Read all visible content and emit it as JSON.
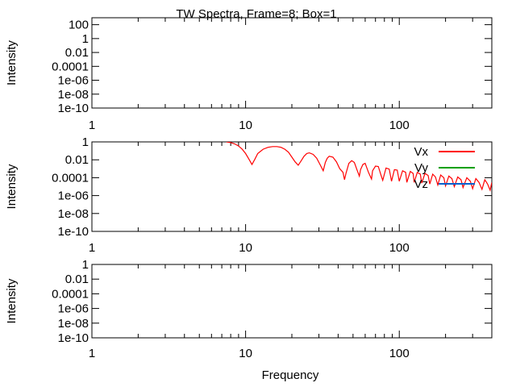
{
  "title": "TW Spectra, Frame=8; Box=1",
  "xlabel": "Frequency",
  "colors": {
    "Vx": "#ff0000",
    "Vy": "#00a000",
    "Vz": "#0060d0"
  },
  "chart_data": [
    {
      "type": "line",
      "ylabel": "Intensity",
      "xscale": "log",
      "yscale": "log",
      "xlim": [
        1,
        400
      ],
      "ylim": [
        1e-10,
        1000
      ],
      "xticks": [
        {
          "v": 1,
          "label": "1"
        },
        {
          "v": 10,
          "label": "10"
        },
        {
          "v": 100,
          "label": "100"
        }
      ],
      "yticks": [
        {
          "v": 100,
          "label": "100"
        },
        {
          "v": 1,
          "label": "1"
        },
        {
          "v": 0.01,
          "label": "0.01"
        },
        {
          "v": 0.0001,
          "label": "0.0001"
        },
        {
          "v": 1e-06,
          "label": "1e-06"
        },
        {
          "v": 1e-08,
          "label": "1e-08"
        },
        {
          "v": 1e-10,
          "label": "1e-10"
        }
      ],
      "series": []
    },
    {
      "type": "line",
      "ylabel": "Intensity",
      "xscale": "log",
      "yscale": "log",
      "xlim": [
        1,
        400
      ],
      "ylim": [
        1e-10,
        1
      ],
      "legend": "top-right",
      "xticks": [
        {
          "v": 1,
          "label": "1"
        },
        {
          "v": 10,
          "label": "10"
        },
        {
          "v": 100,
          "label": "100"
        }
      ],
      "yticks": [
        {
          "v": 1,
          "label": "1"
        },
        {
          "v": 0.01,
          "label": "0.01"
        },
        {
          "v": 0.0001,
          "label": "0.0001"
        },
        {
          "v": 1e-06,
          "label": "1e-06"
        },
        {
          "v": 1e-08,
          "label": "1e-08"
        },
        {
          "v": 1e-10,
          "label": "1e-10"
        }
      ],
      "series": [
        {
          "name": "Vx",
          "color": "#ff0000",
          "x": [
            7.5,
            8.0,
            8.5,
            9.0,
            9.5,
            10.0,
            10.5,
            11.0,
            11.5,
            12.0,
            13.0,
            14.0,
            15.0,
            16.0,
            17.0,
            18.0,
            19.0,
            20.0,
            21.0,
            22.0,
            23.0,
            24.0,
            25.0,
            26.0,
            27.5,
            29.0,
            30.5,
            32.0,
            33.0,
            34.0,
            35.0,
            37.0,
            39.0,
            41.0,
            43.0,
            44.0,
            45.0,
            47.0,
            49.0,
            51.0,
            53.0,
            55.0,
            56.0,
            58.0,
            60.0,
            63.0,
            66.0,
            67.0,
            70.0,
            73.0,
            76.0,
            78.0,
            82.0,
            86.0,
            89.0,
            93.0,
            97.0,
            100.0,
            105.0,
            110.0,
            112.0,
            118.0,
            123.0,
            125.0,
            131.0,
            137.0,
            140.0,
            147.0,
            154.0,
            158.0,
            165.0,
            172.0,
            178.0,
            186.0,
            195.0,
            200.0,
            210.0,
            220.0,
            228.0,
            240.0,
            252.0,
            260.0,
            275.0,
            290.0,
            300.0,
            315.0,
            330.0,
            345.0,
            360.0,
            375.0,
            390.0,
            400.0
          ],
          "y": [
            1.0,
            0.85,
            0.6,
            0.35,
            0.15,
            0.05,
            0.012,
            0.003,
            0.012,
            0.05,
            0.15,
            0.25,
            0.3,
            0.3,
            0.25,
            0.15,
            0.07,
            0.02,
            0.006,
            0.0025,
            0.008,
            0.025,
            0.05,
            0.06,
            0.04,
            0.015,
            0.003,
            0.0006,
            0.005,
            0.015,
            0.025,
            0.02,
            0.006,
            0.001,
            0.0004,
            6e-05,
            0.0003,
            0.004,
            0.008,
            0.005,
            0.0008,
            0.00015,
            0.0008,
            0.003,
            0.004,
            0.0004,
            7e-05,
            0.0006,
            0.002,
            0.0018,
            0.0002,
            5e-05,
            0.0012,
            0.0009,
            4e-05,
            0.0008,
            0.0007,
            4e-05,
            0.0006,
            0.0004,
            3e-05,
            0.0005,
            0.0003,
            3e-05,
            0.0004,
            0.00025,
            2.5e-05,
            0.0003,
            0.00018,
            2e-05,
            0.00025,
            0.00012,
            1.5e-05,
            0.0002,
            0.0001,
            1.2e-05,
            0.00015,
            8e-05,
            1e-05,
            0.00012,
            6e-05,
            8e-06,
            0.0001,
            4e-05,
            6e-06,
            8e-05,
            3e-05,
            5e-06,
            6e-05,
            2e-05,
            4e-06,
            3e-05
          ]
        },
        {
          "name": "Vy",
          "color": "#00a000",
          "x": [],
          "y": []
        },
        {
          "name": "Vz",
          "color": "#0060d0",
          "x": [],
          "y": []
        }
      ]
    },
    {
      "type": "line",
      "ylabel": "Intensity",
      "xscale": "log",
      "yscale": "log",
      "xlim": [
        1,
        400
      ],
      "ylim": [
        1e-10,
        1
      ],
      "xticks": [
        {
          "v": 1,
          "label": "1"
        },
        {
          "v": 10,
          "label": "10"
        },
        {
          "v": 100,
          "label": "100"
        }
      ],
      "yticks": [
        {
          "v": 1,
          "label": "1"
        },
        {
          "v": 0.01,
          "label": "0.01"
        },
        {
          "v": 0.0001,
          "label": "0.0001"
        },
        {
          "v": 1e-06,
          "label": "1e-06"
        },
        {
          "v": 1e-08,
          "label": "1e-08"
        },
        {
          "v": 1e-10,
          "label": "1e-10"
        }
      ],
      "series": []
    }
  ]
}
